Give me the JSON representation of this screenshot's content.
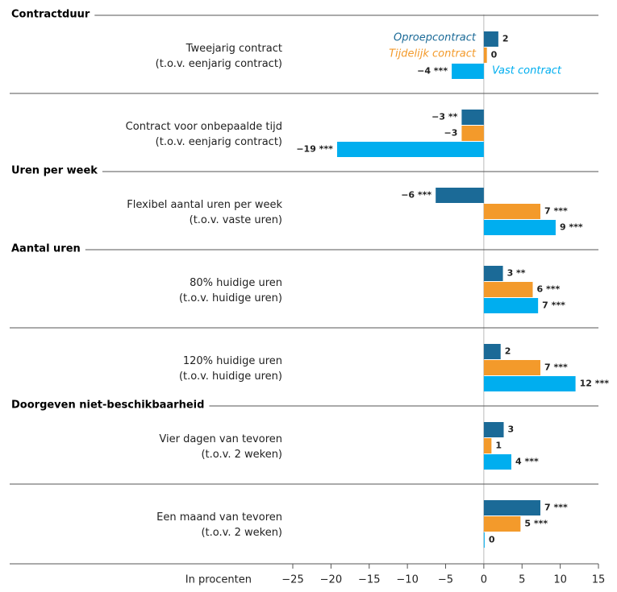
{
  "chart_data": {
    "type": "hbar",
    "axis_label": "In procenten",
    "groups": [
      {
        "name": "Contractduur",
        "categories": [
          [
            "Tweejarig contract",
            "(t.o.v. eenjarig contract)"
          ],
          [
            "Contract voor onbepaalde tijd",
            "(t.o.v. eenjarig contract)"
          ]
        ]
      },
      {
        "name": "Uren per week",
        "categories": [
          [
            "Flexibel aantal uren per week",
            "(t.o.v. vaste uren)"
          ]
        ]
      },
      {
        "name": "Aantal uren",
        "categories": [
          [
            "80% huidige uren",
            "(t.o.v. huidige uren)"
          ],
          [
            "120% huidige uren",
            "(t.o.v. huidige uren)"
          ]
        ]
      },
      {
        "name": "Doorgeven niet-beschikbaarheid",
        "categories": [
          [
            "Vier dagen van tevoren",
            "(t.o.v. 2 weken)"
          ],
          [
            "Een maand van tevoren",
            "(t.o.v. 2 weken)"
          ]
        ]
      }
    ],
    "series": [
      {
        "name": "Oproepcontract",
        "color": "#1b6a97",
        "values": [
          1.9,
          -2.9,
          -6.3,
          2.5,
          2.2,
          2.6,
          7.4
        ],
        "value_labels": [
          "2",
          "−3 **",
          "−6 ***",
          "3 **",
          "2",
          "3",
          "7 ***"
        ]
      },
      {
        "name": "Tijdelijk contract",
        "color": "#f39a2b",
        "values": [
          0.4,
          -2.9,
          7.4,
          6.4,
          7.4,
          1.0,
          4.8
        ],
        "value_labels": [
          "0",
          "−3",
          "7 ***",
          "6 ***",
          "7 ***",
          "1",
          "5 ***"
        ]
      },
      {
        "name": "Vast contract",
        "color": "#00aeef",
        "values": [
          -4.2,
          -19.2,
          9.4,
          7.1,
          12.0,
          3.6,
          0.1
        ],
        "value_labels": [
          "−4 ***",
          "−19 ***",
          "9 ***",
          "7 ***",
          "12 ***",
          "4 ***",
          "0"
        ]
      }
    ],
    "xlim": [
      -25,
      15
    ],
    "xticks": [
      {
        "value": -25,
        "label": "−25"
      },
      {
        "value": -20,
        "label": "−20"
      },
      {
        "value": -15,
        "label": "−15"
      },
      {
        "value": -10,
        "label": "−10"
      },
      {
        "value": -5,
        "label": "−5"
      },
      0,
      5,
      10,
      15
    ]
  }
}
